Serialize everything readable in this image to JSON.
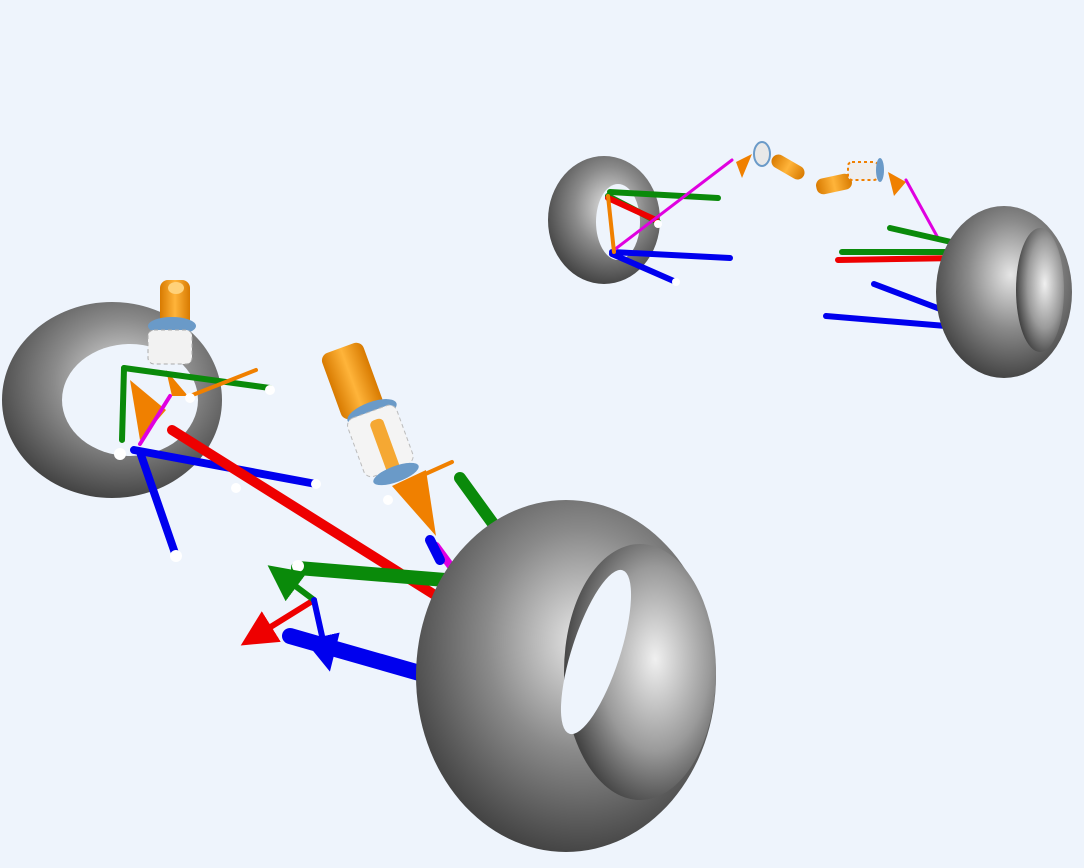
{
  "viewport": {
    "background": "#eef4fc",
    "description_icons": [
      "tire-icon",
      "coil-spring-icon",
      "damper-icon",
      "axis-triad-icon"
    ]
  },
  "colors": {
    "tire_dark": "#3f3f3f",
    "tire_light": "#d8d8d8",
    "damper": "#f59a10",
    "damper_highlight": "#ffd27a",
    "spring": "#e8e8e8",
    "spring_mount": "#6a9ac8",
    "upper_arm": "#0a8a0a",
    "lower_arm": "#0000ee",
    "tie_rod": "#ee0000",
    "pushrod": "#e000e0",
    "rocker": "#f08000",
    "joint": "#ffffff"
  },
  "axis_triad": {
    "x_color": "#ee0000",
    "y_color": "#0a8a0a",
    "z_color": "#0000ee"
  }
}
